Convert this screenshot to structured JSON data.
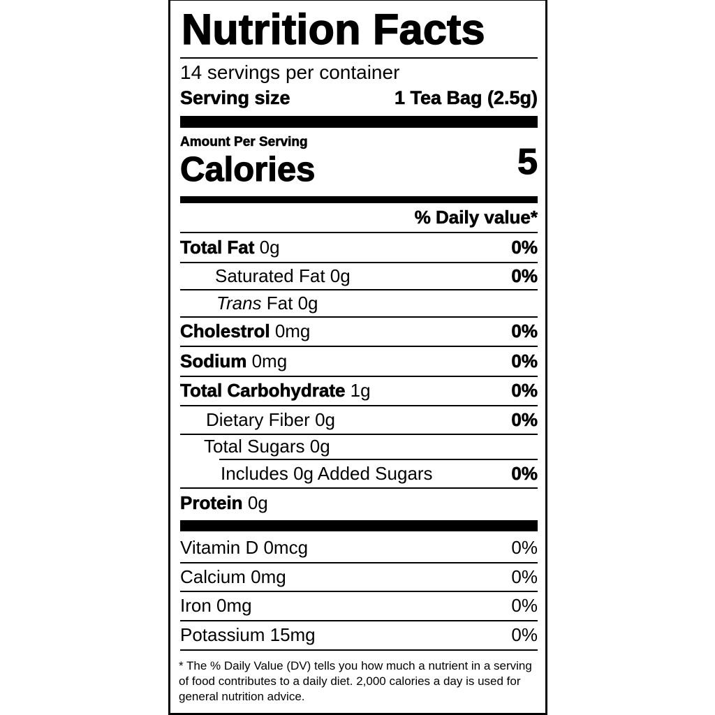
{
  "title": "Nutrition Facts",
  "servings_per_container": "14 servings per container",
  "serving_size_label": "Serving size",
  "serving_size_value": "1 Tea Bag (2.5g)",
  "amount_per_serving": "Amount Per Serving",
  "calories_label": "Calories",
  "calories_value": "5",
  "daily_value_header": "% Daily value*",
  "nutrients": [
    {
      "name": "Total Fat",
      "amount": "0g",
      "dv": "0%"
    },
    {
      "name": "Saturated Fat",
      "amount": "0g",
      "dv": "0%"
    },
    {
      "name_italic": "Trans",
      "name": "Fat",
      "amount": "0g"
    },
    {
      "name": "Cholestrol",
      "amount": "0mg",
      "dv": "0%"
    },
    {
      "name": "Sodium",
      "amount": "0mg",
      "dv": "0%"
    },
    {
      "name": "Total Carbohydrate",
      "amount": "1g",
      "dv": "0%"
    },
    {
      "name": "Dietary Fiber",
      "amount": "0g",
      "dv": "0%"
    },
    {
      "name": "Total Sugars",
      "amount": "0g"
    },
    {
      "name": "Includes 0g Added Sugars",
      "dv": "0%"
    },
    {
      "name": "Protein",
      "amount": "0g"
    }
  ],
  "vitamins": [
    {
      "name": "Vitamin D 0mcg",
      "dv": "0%"
    },
    {
      "name": "Calcium 0mg",
      "dv": "0%"
    },
    {
      "name": "Iron 0mg",
      "dv": "0%"
    },
    {
      "name": "Potassium 15mg",
      "dv": "0%"
    }
  ],
  "footnote": "* The % Daily Value (DV) tells you how much a nutrient in a serving of food contributes to a daily diet. 2,000 calories a day is used for general nutrition advice."
}
